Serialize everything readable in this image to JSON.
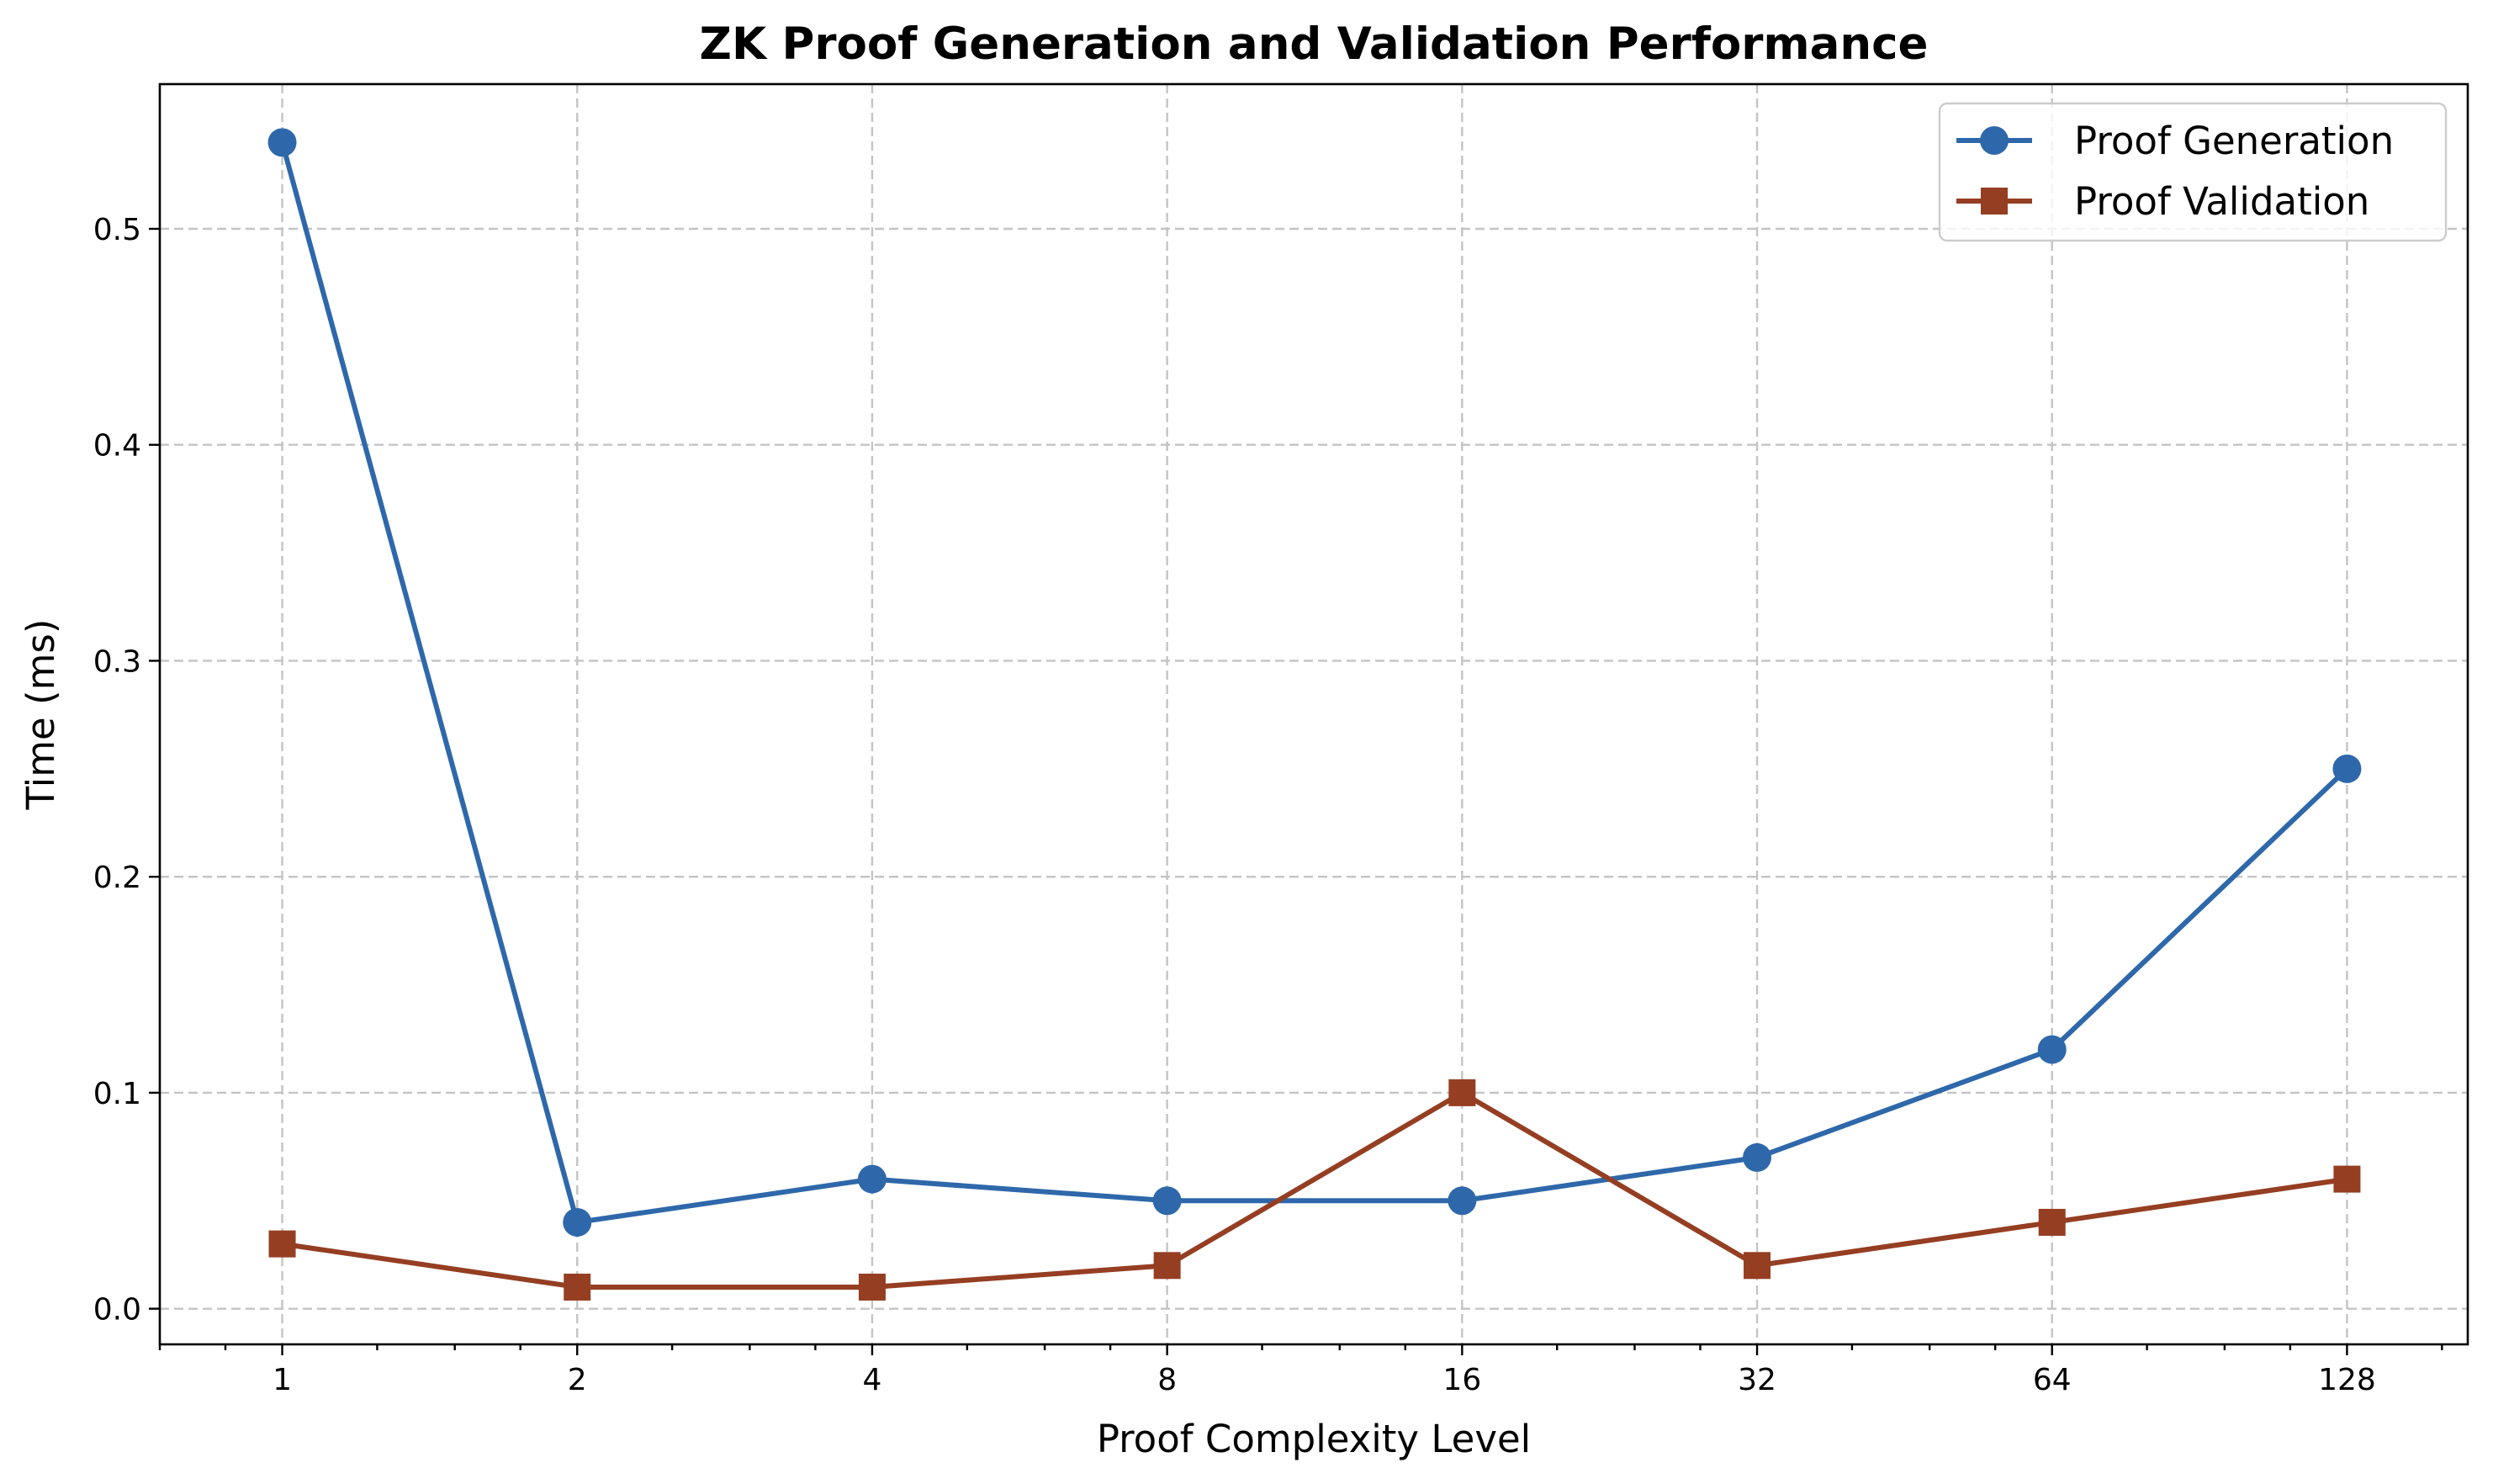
{
  "chart_data": {
    "type": "line",
    "title": "ZK Proof Generation and Validation Performance",
    "xlabel": "Proof Complexity Level",
    "ylabel": "Time (ms)",
    "x_scale": "log2",
    "x": [
      1,
      2,
      4,
      8,
      16,
      32,
      64,
      128
    ],
    "x_tick_labels": [
      "1",
      "2",
      "4",
      "8",
      "16",
      "32",
      "64",
      "128"
    ],
    "y_ticks": [
      0.0,
      0.1,
      0.2,
      0.3,
      0.4,
      0.5
    ],
    "y_tick_labels": [
      "0.0",
      "0.1",
      "0.2",
      "0.3",
      "0.4",
      "0.5"
    ],
    "ylim": [
      -0.0165,
      0.567
    ],
    "xlim": [
      0.75,
      170
    ],
    "grid": true,
    "legend_position": "top-right",
    "series": [
      {
        "name": "Proof Generation",
        "marker": "circle",
        "color": "#2e68aa",
        "values": [
          0.54,
          0.04,
          0.06,
          0.05,
          0.05,
          0.07,
          0.12,
          0.25
        ]
      },
      {
        "name": "Proof Validation",
        "marker": "square",
        "color": "#953e22",
        "values": [
          0.03,
          0.01,
          0.01,
          0.02,
          0.1,
          0.02,
          0.04,
          0.06
        ]
      }
    ]
  }
}
